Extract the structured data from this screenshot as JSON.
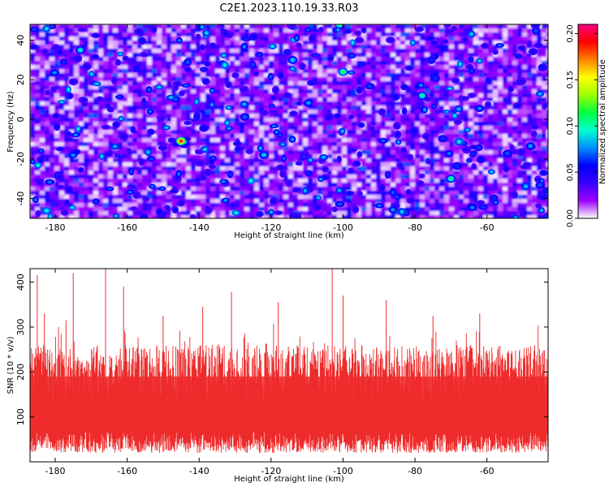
{
  "title": "C2E1.2023.110.19.33.R03",
  "chart_data": [
    {
      "type": "heatmap",
      "xlabel": "Height of straight line (km)",
      "ylabel": "Frequency (Hz)",
      "xlim": [
        -187,
        -43
      ],
      "ylim": [
        -50,
        48
      ],
      "x_ticks": [
        -180,
        -160,
        -140,
        -120,
        -100,
        -80,
        -60
      ],
      "y_ticks": [
        -40,
        -20,
        0,
        20,
        40
      ],
      "colorbar": {
        "label": "Normalized spectral amplitude",
        "range": [
          0.0,
          0.21
        ],
        "ticks": [
          "0.00",
          "0.05",
          "0.10",
          "0.15",
          "0.20"
        ],
        "colormap": [
          "#ffffff",
          "#9d00ff",
          "#3a00ff",
          "#0000ff",
          "#0090ff",
          "#00ffd0",
          "#00ff40",
          "#a0ff00",
          "#ffff00",
          "#ff8000",
          "#ff0000",
          "#ff0080"
        ]
      },
      "grid": false,
      "description_values": {
        "background_level": 0.02,
        "typical_peak_level": 0.06,
        "strongest_peaks": [
          {
            "x": -145,
            "y": -11,
            "value": 0.2
          },
          {
            "x": -101,
            "y": 48,
            "value": 0.12
          },
          {
            "x": -100,
            "y": 24,
            "value": 0.12
          },
          {
            "x": -78,
            "y": 12,
            "value": 0.11
          },
          {
            "x": -70,
            "y": -30,
            "value": 0.11
          },
          {
            "x": -173,
            "y": 35,
            "value": 0.1
          },
          {
            "x": -122,
            "y": -18,
            "value": 0.09
          },
          {
            "x": -114,
            "y": 30,
            "value": 0.09
          }
        ]
      }
    },
    {
      "type": "line",
      "xlabel": "Height of straight line (km)",
      "ylabel": "SNR (10 * v/v)",
      "xlim": [
        -187,
        -43
      ],
      "ylim": [
        0,
        430
      ],
      "x_ticks": [
        -180,
        -160,
        -140,
        -120,
        -100,
        -80,
        -60
      ],
      "y_ticks": [
        100,
        200,
        300,
        400
      ],
      "grid": false,
      "series": [
        {
          "color": "#ee2b2b",
          "typical_range": [
            60,
            250
          ],
          "mean": 130,
          "spikes": [
            {
              "x": -185,
              "y": 415
            },
            {
              "x": -183,
              "y": 330
            },
            {
              "x": -177,
              "y": 315
            },
            {
              "x": -175,
              "y": 420
            },
            {
              "x": -166,
              "y": 430
            },
            {
              "x": -161,
              "y": 390
            },
            {
              "x": -150,
              "y": 325
            },
            {
              "x": -139,
              "y": 345
            },
            {
              "x": -131,
              "y": 378
            },
            {
              "x": -118,
              "y": 355
            },
            {
              "x": -103,
              "y": 430
            },
            {
              "x": -100,
              "y": 370
            },
            {
              "x": -88,
              "y": 360
            },
            {
              "x": -75,
              "y": 325
            },
            {
              "x": -62,
              "y": 330
            },
            {
              "x": -43,
              "y": 330
            }
          ]
        }
      ]
    }
  ]
}
